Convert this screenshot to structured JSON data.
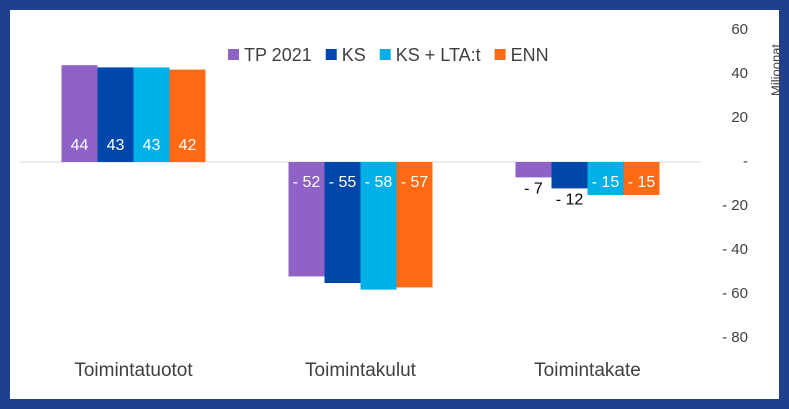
{
  "chart_data": {
    "type": "bar",
    "categories": [
      "Toimintatuotot",
      "Toimintakulut",
      "Toimintakate"
    ],
    "series": [
      {
        "name": "TP 2021",
        "color": "#8e62c6",
        "values": [
          44,
          -52,
          -7
        ],
        "value_labels": [
          "44",
          "- 52",
          "- 7"
        ]
      },
      {
        "name": "KS",
        "color": "#0047ab",
        "values": [
          43,
          -55,
          -12
        ],
        "value_labels": [
          "43",
          "- 55",
          "- 12"
        ]
      },
      {
        "name": "KS + LTA:t",
        "color": "#00b0e8",
        "values": [
          43,
          -58,
          -15
        ],
        "value_labels": [
          "43",
          "- 58",
          "- 15"
        ]
      },
      {
        "name": "ENN",
        "color": "#ff6a13",
        "values": [
          42,
          -57,
          -15
        ],
        "value_labels": [
          "42",
          "- 57",
          "- 15"
        ]
      }
    ],
    "y_axis_label": "Miljoonat",
    "ylim": [
      -80,
      60
    ],
    "yticks": [
      60,
      40,
      20,
      {
        "value": 0,
        "label": "-"
      },
      {
        "value": -20,
        "label": "- 20"
      },
      {
        "value": -40,
        "label": "- 40"
      },
      {
        "value": -60,
        "label": "- 60"
      },
      {
        "value": -80,
        "label": "- 80"
      }
    ],
    "legend": "top"
  }
}
